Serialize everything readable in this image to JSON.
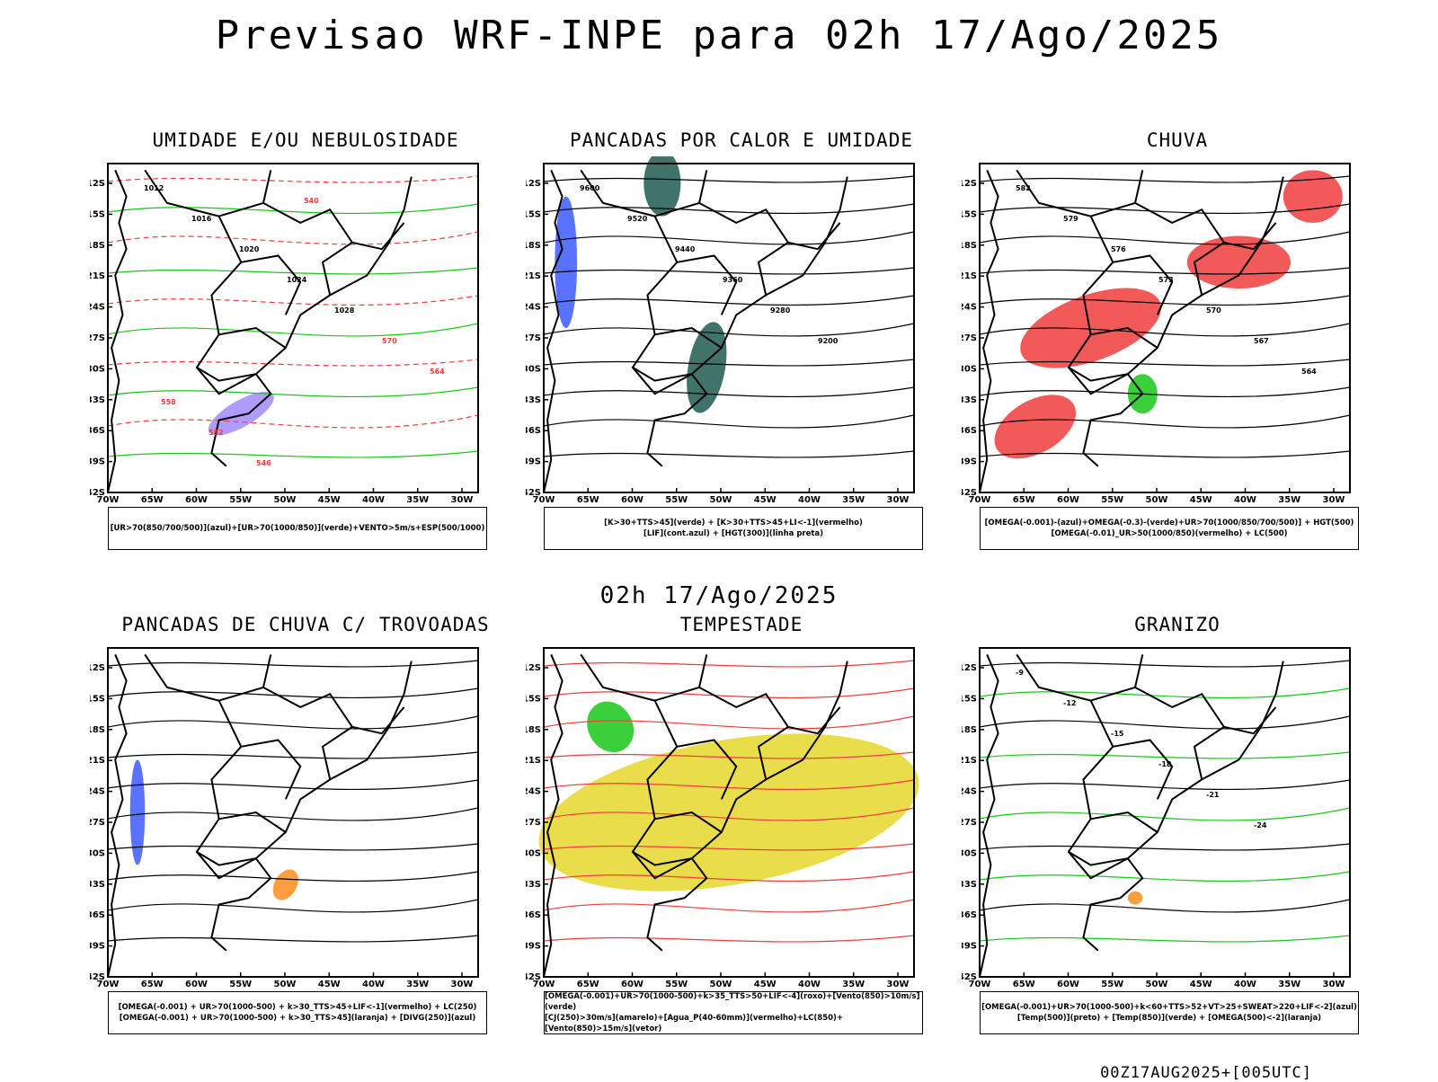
{
  "title": "Previsao WRF-INPE  para 02h 17/Ago/2025",
  "mid_date": "02h 17/Ago/2025",
  "footer": "00Z17AUG2025+[005UTC]",
  "axes": {
    "lat_labels": [
      "12S",
      "15S",
      "18S",
      "21S",
      "24S",
      "27S",
      "30S",
      "33S",
      "36S",
      "39S",
      "42S"
    ],
    "lon_labels": [
      "70W",
      "65W",
      "60W",
      "55W",
      "50W",
      "45W",
      "40W",
      "35W",
      "30W"
    ]
  },
  "colors": {
    "green": "#19c819",
    "red": "#f03c3c",
    "blue": "#3c5aff",
    "purple": "#a08cff",
    "teal": "#1e5a50",
    "yellow": "#e6d72d",
    "orange": "#ff8c1e"
  },
  "panels": [
    {
      "title": "UMIDADE E/OU NEBULOSIDADE",
      "legend": [
        "[UR>70(850/700/500)](azul)+[UR>70(1000/850)](verde)+VENTO>5m/s+ESP(500/1000)"
      ],
      "contour_labels": [
        "1012",
        "1016",
        "1020",
        "1024",
        "1028",
        "570",
        "564",
        "558",
        "552",
        "546",
        "540"
      ]
    },
    {
      "title": "PANCADAS POR CALOR E UMIDADE",
      "legend": [
        "[K>30+TTS>45](verde) + [K>30+TTS>45+LI<-1](vermelho)",
        "[LIF](cont.azul) + [HGT(300)](linha preta)"
      ],
      "contour_labels": [
        "9600",
        "9520",
        "9440",
        "9360",
        "9280",
        "9200"
      ]
    },
    {
      "title": "CHUVA",
      "legend": [
        "[OMEGA(-0.001)-(azul)+OMEGA(-0.3)-(verde)+UR>70(1000/850/700/500)] + HGT(500)",
        "[OMEGA(-0.01)_UR>50(1000/850)(vermelho) + LC(500)"
      ],
      "contour_labels": [
        "582",
        "579",
        "576",
        "573",
        "570",
        "567",
        "564"
      ]
    },
    {
      "title": "PANCADAS DE CHUVA C/ TROVOADAS",
      "legend": [
        "[OMEGA(-0.001) + UR>70(1000-500) + k>30_TTS>45+LIF<-1](vermelho) + LC(250)",
        "[OMEGA(-0.001) + UR>70(1000-500) + k>30_TTS>45](laranja) + [DIVG(250)](azul)"
      ],
      "contour_labels": []
    },
    {
      "title": "TEMPESTADE",
      "legend": [
        "[OMEGA(-0.001)+UR>70(1000-500)+k>35_TTS>50+LIF<-4](roxo)+[Vento(850)>10m/s](verde)",
        "[CJ(250)>30m/s](amarelo)+[Agua_P(40-60mm)](vermelho)+LC(850)+[Vento(850)>15m/s](vetor)"
      ],
      "contour_labels": []
    },
    {
      "title": "GRANIZO",
      "legend": [
        "[OMEGA(-0.001)+UR>70(1000-500)+k<60+TTS>52+VT>25+SWEAT>220+LIF<-2](azul)",
        "[Temp(500)](preto) + [Temp(850)](verde) + [OMEGA(500)<-2](laranja)"
      ],
      "contour_labels": [
        "-9",
        "-12",
        "-15",
        "-18",
        "-21",
        "-24"
      ]
    }
  ]
}
